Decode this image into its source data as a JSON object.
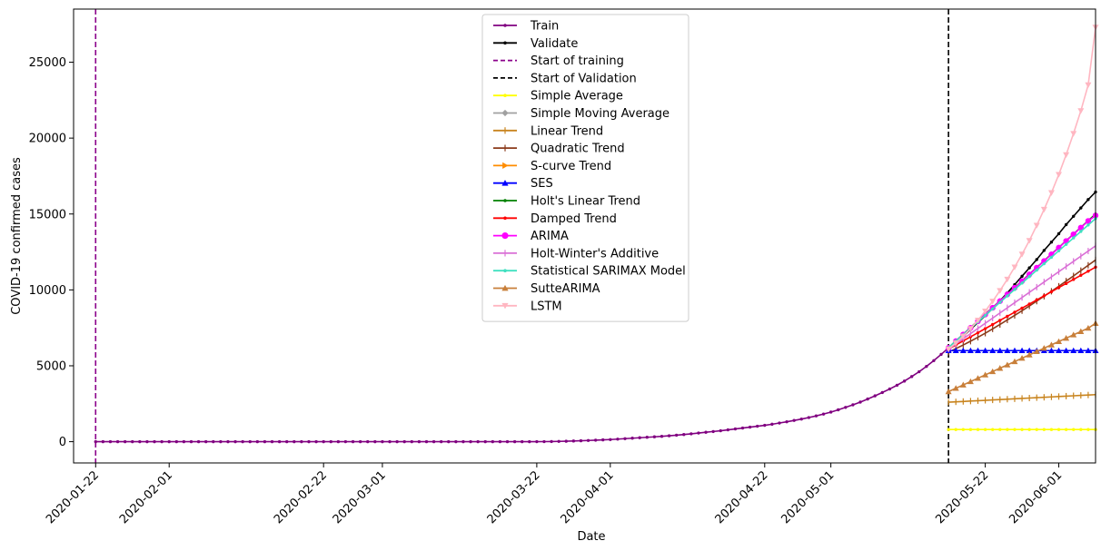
{
  "chart_data": {
    "type": "line",
    "xlabel": "Date",
    "ylabel": "COVID-19 confirmed cases",
    "x_range": [
      "2020-01-19",
      "2020-06-06"
    ],
    "ylim": [
      -1400,
      28500
    ],
    "x_ticks": [
      "2020-01-22",
      "2020-02-01",
      "2020-02-22",
      "2020-03-01",
      "2020-03-22",
      "2020-04-01",
      "2020-04-22",
      "2020-05-01",
      "2020-05-22",
      "2020-06-01"
    ],
    "y_ticks": [
      "0",
      "5000",
      "10000",
      "15000",
      "20000",
      "25000"
    ],
    "y_tick_values": [
      0,
      5000,
      10000,
      15000,
      20000,
      25000
    ],
    "grid": false,
    "legend_position": "top-center",
    "vlines": [
      {
        "name": "Start of training",
        "x": "2020-01-22",
        "color": "#8b008b",
        "style": "dashed"
      },
      {
        "name": "Start of Validation",
        "x": "2020-05-17",
        "color": "#000000",
        "style": "dashed"
      }
    ],
    "train": {
      "name": "Train",
      "color": "#800080",
      "marker": "dot",
      "start": "2020-01-22",
      "values": [
        0,
        0,
        0,
        0,
        0,
        0,
        0,
        0,
        0,
        0,
        0,
        0,
        0,
        0,
        0,
        0,
        0,
        0,
        0,
        0,
        0,
        0,
        0,
        0,
        0,
        0,
        0,
        0,
        0,
        0,
        0,
        0,
        0,
        0,
        0,
        0,
        0,
        0,
        0,
        0,
        0,
        0,
        0,
        0,
        0,
        0,
        0,
        0,
        0,
        0,
        0,
        0,
        0,
        0,
        0,
        0,
        0,
        0,
        0,
        0,
        2,
        5,
        10,
        20,
        30,
        45,
        60,
        80,
        100,
        120,
        140,
        170,
        200,
        230,
        260,
        290,
        320,
        350,
        390,
        430,
        470,
        520,
        570,
        620,
        670,
        720,
        780,
        840,
        900,
        960,
        1020,
        1080,
        1150,
        1230,
        1310,
        1400,
        1490,
        1590,
        1700,
        1820,
        1950,
        2100,
        2260,
        2430,
        2610,
        2810,
        3020,
        3240,
        3470,
        3720,
        3990,
        4290,
        4610,
        4960,
        5340,
        5750,
        6180
      ]
    },
    "series": [
      {
        "name": "Validate",
        "color": "#000000",
        "marker": "dot",
        "start": "2020-05-17",
        "values": [
          6180,
          6550,
          6950,
          7400,
          7850,
          8300,
          8780,
          9280,
          9800,
          10350,
          10900,
          11450,
          12000,
          12600,
          13150,
          13700,
          14300,
          14850,
          15400,
          15950,
          16450
        ]
      },
      {
        "name": "Simple Average",
        "color": "#ffff00",
        "marker": "dot",
        "start": "2020-05-17",
        "values": [
          800,
          800,
          800,
          800,
          800,
          800,
          800,
          800,
          800,
          800,
          800,
          800,
          800,
          800,
          800,
          800,
          800,
          800,
          800,
          800,
          800
        ]
      },
      {
        "name": "Simple Moving Average",
        "color": "#a0a0a0",
        "marker": "diamond",
        "start": "2020-05-17",
        "values": []
      },
      {
        "name": "Linear Trend",
        "color": "#c8841e",
        "marker": "tick",
        "start": "2020-05-17",
        "values": [
          2600,
          2625,
          2650,
          2675,
          2700,
          2725,
          2750,
          2775,
          2800,
          2825,
          2850,
          2875,
          2900,
          2925,
          2950,
          2975,
          3000,
          3025,
          3050,
          3075,
          3100
        ]
      },
      {
        "name": "Quadratic Trend",
        "color": "#8b3a1a",
        "marker": "tick",
        "start": "2020-05-17",
        "values": [
          5900,
          6130,
          6370,
          6620,
          6880,
          7150,
          7430,
          7720,
          8020,
          8320,
          8630,
          8940,
          9260,
          9580,
          9910,
          10240,
          10580,
          10920,
          11270,
          11620,
          11970
        ]
      },
      {
        "name": "S-curve Trend",
        "color": "#ff8c00",
        "marker": "tri-right",
        "start": "2020-05-17",
        "values": []
      },
      {
        "name": "SES",
        "color": "#0000ff",
        "marker": "tri-up",
        "start": "2020-05-17",
        "values": [
          6000,
          6000,
          6000,
          6000,
          6000,
          6000,
          6000,
          6000,
          6000,
          6000,
          6000,
          6000,
          6000,
          6000,
          6000,
          6000,
          6000,
          6000,
          6000,
          6000,
          6000
        ]
      },
      {
        "name": "Holt's Linear Trend",
        "color": "#008000",
        "marker": "dot",
        "start": "2020-05-17",
        "values": [
          6200,
          6640,
          7080,
          7520,
          7960,
          8400,
          8840,
          9280,
          9720,
          10160,
          10600,
          11040,
          11480,
          11920,
          12360,
          12800,
          13240,
          13680,
          14120,
          14560,
          15000
        ]
      },
      {
        "name": "Damped Trend",
        "color": "#ff0000",
        "marker": "dot",
        "start": "2020-05-17",
        "values": [
          6100,
          6370,
          6640,
          6910,
          7180,
          7450,
          7720,
          7990,
          8260,
          8530,
          8800,
          9070,
          9340,
          9610,
          9880,
          10150,
          10420,
          10690,
          10960,
          11230,
          11500
        ]
      },
      {
        "name": "ARIMA",
        "color": "#ff00ff",
        "marker": "circle",
        "start": "2020-05-17",
        "values": [
          6180,
          6620,
          7060,
          7500,
          7940,
          8380,
          8820,
          9260,
          9700,
          10140,
          10580,
          11020,
          11460,
          11900,
          12340,
          12780,
          13220,
          13660,
          14100,
          14540,
          14900
        ]
      },
      {
        "name": "Holt-Winter's Additive",
        "color": "#da70d6",
        "marker": "tick",
        "start": "2020-05-17",
        "values": [
          6100,
          6440,
          6780,
          7120,
          7460,
          7800,
          8140,
          8480,
          8820,
          9160,
          9500,
          9840,
          10180,
          10520,
          10860,
          11200,
          11540,
          11880,
          12220,
          12560,
          12900
        ]
      },
      {
        "name": "Statistical SARIMAX Model",
        "color": "#40e0c0",
        "marker": "dot",
        "start": "2020-05-17",
        "values": [
          6200,
          6625,
          7050,
          7475,
          7900,
          8325,
          8750,
          9175,
          9600,
          10025,
          10450,
          10875,
          11300,
          11725,
          12150,
          12575,
          13000,
          13425,
          13850,
          14275,
          14700
        ]
      },
      {
        "name": "SutteARIMA",
        "color": "#c87f3a",
        "marker": "tri-up",
        "start": "2020-05-17",
        "values": [
          3300,
          3520,
          3740,
          3960,
          4180,
          4400,
          4620,
          4840,
          5060,
          5280,
          5500,
          5720,
          5940,
          6160,
          6380,
          6600,
          6820,
          7040,
          7260,
          7480,
          7800
        ]
      },
      {
        "name": "LSTM",
        "color": "#ffb6c1",
        "marker": "tri-down",
        "start": "2020-05-17",
        "values": [
          6100,
          6500,
          6950,
          7450,
          8000,
          8600,
          9250,
          9950,
          10700,
          11500,
          12350,
          13250,
          14250,
          15300,
          16400,
          17600,
          18900,
          20300,
          21800,
          23500,
          27300
        ]
      }
    ]
  }
}
